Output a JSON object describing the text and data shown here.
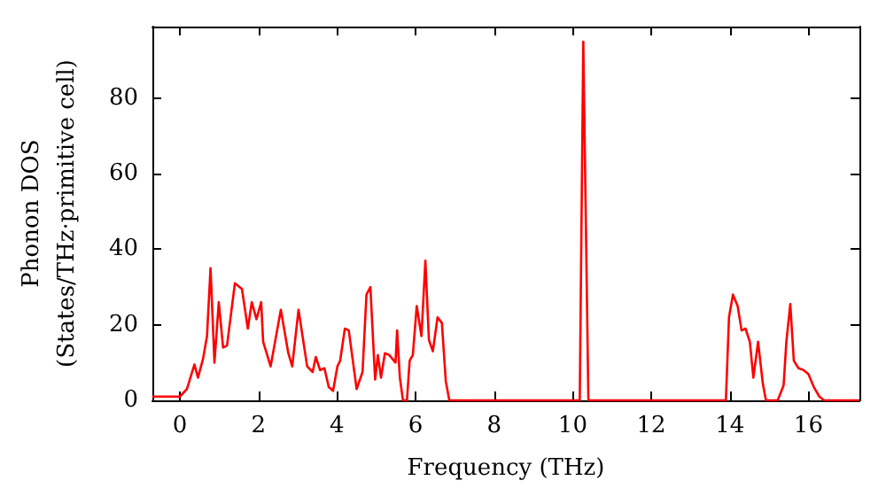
{
  "chart_data": {
    "type": "line",
    "xlabel": "Frequency (THz)",
    "ylabel": "Phonon DOS\n(States/THz·primitive cell)",
    "xlim": [
      -0.7,
      17.3
    ],
    "ylim": [
      0,
      99
    ],
    "xticks": [
      0,
      2,
      4,
      6,
      8,
      10,
      12,
      14,
      16
    ],
    "yticks": [
      0,
      20,
      40,
      60,
      80
    ],
    "grid": false,
    "marker": "none",
    "line_style": "solid",
    "series": [
      {
        "color": "#ff0000",
        "x": [
          -0.7,
          0,
          0.18,
          0.37,
          0.46,
          0.59,
          0.69,
          0.78,
          0.88,
          0.99,
          1.1,
          1.2,
          1.4,
          1.58,
          1.73,
          1.83,
          1.95,
          2.07,
          2.12,
          2.31,
          2.57,
          2.76,
          2.86,
          3.02,
          3.24,
          3.38,
          3.46,
          3.57,
          3.68,
          3.79,
          3.9,
          4.01,
          4.08,
          4.2,
          4.3,
          4.5,
          4.65,
          4.75,
          4.85,
          4.97,
          5.04,
          5.12,
          5.22,
          5.33,
          5.49,
          5.53,
          5.6,
          5.68,
          5.78,
          5.85,
          5.93,
          6.03,
          6.15,
          6.25,
          6.34,
          6.44,
          6.56,
          6.67,
          6.77,
          6.86,
          10.18,
          10.27,
          10.4,
          13.9,
          13.98,
          14.08,
          14.2,
          14.3,
          14.4,
          14.51,
          14.6,
          14.72,
          14.84,
          14.92,
          15.22,
          15.37,
          15.44,
          15.54,
          15.63,
          15.75,
          15.88,
          16.0,
          16.14,
          16.28,
          16.4,
          17.3
        ],
        "values": [
          1,
          1,
          3,
          9.5,
          6,
          11,
          17,
          35,
          10,
          26,
          14,
          14.5,
          31,
          29.5,
          19,
          26,
          21.5,
          26,
          15.5,
          9,
          24,
          12.5,
          9,
          24,
          9,
          7.5,
          11.5,
          8,
          8.5,
          3.5,
          2.5,
          9,
          10.5,
          19,
          18.5,
          3,
          7.5,
          28,
          30,
          5.5,
          12,
          6,
          12.5,
          12,
          10,
          18.5,
          6,
          0,
          0,
          10.5,
          12,
          25,
          17,
          37,
          16,
          13,
          22,
          20.5,
          5,
          0,
          0,
          95,
          0,
          0,
          22,
          28,
          25,
          18.5,
          19,
          15.5,
          6,
          15.5,
          4.5,
          0,
          0,
          4,
          15.5,
          25.5,
          10.5,
          8.5,
          8,
          7,
          3.5,
          1,
          0,
          0
        ]
      }
    ]
  }
}
